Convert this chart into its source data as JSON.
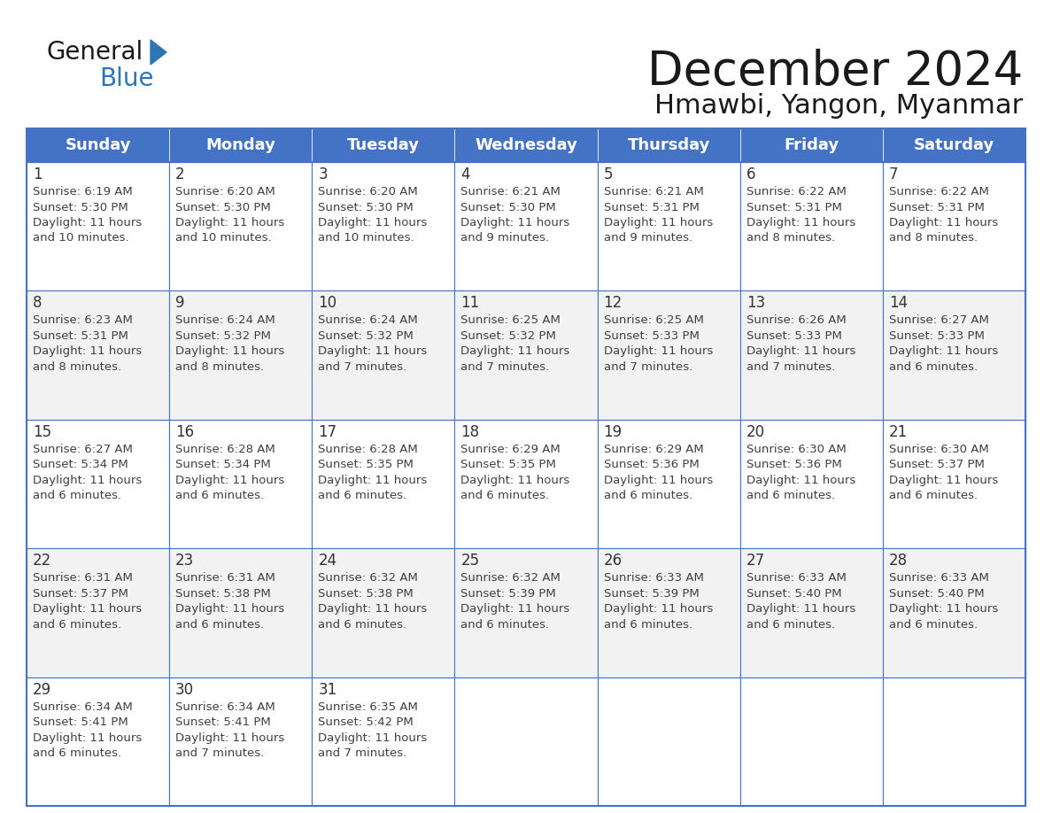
{
  "title": "December 2024",
  "subtitle": "Hmawbi, Yangon, Myanmar",
  "header_bg_color": "#4472C4",
  "header_text_color": "#FFFFFF",
  "cell_bg_color": "#FFFFFF",
  "cell_alt_bg_color": "#F2F2F2",
  "grid_line_color": "#4472C4",
  "day_number_color": "#333333",
  "cell_text_color": "#404040",
  "logo_general_color": "#1a1a1a",
  "logo_blue_color": "#2E75B6",
  "days_of_week": [
    "Sunday",
    "Monday",
    "Tuesday",
    "Wednesday",
    "Thursday",
    "Friday",
    "Saturday"
  ],
  "weeks": [
    [
      {
        "day": 1,
        "sunrise": "6:19 AM",
        "sunset": "5:30 PM",
        "daylight_hours": 11,
        "daylight_minutes": 10
      },
      {
        "day": 2,
        "sunrise": "6:20 AM",
        "sunset": "5:30 PM",
        "daylight_hours": 11,
        "daylight_minutes": 10
      },
      {
        "day": 3,
        "sunrise": "6:20 AM",
        "sunset": "5:30 PM",
        "daylight_hours": 11,
        "daylight_minutes": 10
      },
      {
        "day": 4,
        "sunrise": "6:21 AM",
        "sunset": "5:30 PM",
        "daylight_hours": 11,
        "daylight_minutes": 9
      },
      {
        "day": 5,
        "sunrise": "6:21 AM",
        "sunset": "5:31 PM",
        "daylight_hours": 11,
        "daylight_minutes": 9
      },
      {
        "day": 6,
        "sunrise": "6:22 AM",
        "sunset": "5:31 PM",
        "daylight_hours": 11,
        "daylight_minutes": 8
      },
      {
        "day": 7,
        "sunrise": "6:22 AM",
        "sunset": "5:31 PM",
        "daylight_hours": 11,
        "daylight_minutes": 8
      }
    ],
    [
      {
        "day": 8,
        "sunrise": "6:23 AM",
        "sunset": "5:31 PM",
        "daylight_hours": 11,
        "daylight_minutes": 8
      },
      {
        "day": 9,
        "sunrise": "6:24 AM",
        "sunset": "5:32 PM",
        "daylight_hours": 11,
        "daylight_minutes": 8
      },
      {
        "day": 10,
        "sunrise": "6:24 AM",
        "sunset": "5:32 PM",
        "daylight_hours": 11,
        "daylight_minutes": 7
      },
      {
        "day": 11,
        "sunrise": "6:25 AM",
        "sunset": "5:32 PM",
        "daylight_hours": 11,
        "daylight_minutes": 7
      },
      {
        "day": 12,
        "sunrise": "6:25 AM",
        "sunset": "5:33 PM",
        "daylight_hours": 11,
        "daylight_minutes": 7
      },
      {
        "day": 13,
        "sunrise": "6:26 AM",
        "sunset": "5:33 PM",
        "daylight_hours": 11,
        "daylight_minutes": 7
      },
      {
        "day": 14,
        "sunrise": "6:27 AM",
        "sunset": "5:33 PM",
        "daylight_hours": 11,
        "daylight_minutes": 6
      }
    ],
    [
      {
        "day": 15,
        "sunrise": "6:27 AM",
        "sunset": "5:34 PM",
        "daylight_hours": 11,
        "daylight_minutes": 6
      },
      {
        "day": 16,
        "sunrise": "6:28 AM",
        "sunset": "5:34 PM",
        "daylight_hours": 11,
        "daylight_minutes": 6
      },
      {
        "day": 17,
        "sunrise": "6:28 AM",
        "sunset": "5:35 PM",
        "daylight_hours": 11,
        "daylight_minutes": 6
      },
      {
        "day": 18,
        "sunrise": "6:29 AM",
        "sunset": "5:35 PM",
        "daylight_hours": 11,
        "daylight_minutes": 6
      },
      {
        "day": 19,
        "sunrise": "6:29 AM",
        "sunset": "5:36 PM",
        "daylight_hours": 11,
        "daylight_minutes": 6
      },
      {
        "day": 20,
        "sunrise": "6:30 AM",
        "sunset": "5:36 PM",
        "daylight_hours": 11,
        "daylight_minutes": 6
      },
      {
        "day": 21,
        "sunrise": "6:30 AM",
        "sunset": "5:37 PM",
        "daylight_hours": 11,
        "daylight_minutes": 6
      }
    ],
    [
      {
        "day": 22,
        "sunrise": "6:31 AM",
        "sunset": "5:37 PM",
        "daylight_hours": 11,
        "daylight_minutes": 6
      },
      {
        "day": 23,
        "sunrise": "6:31 AM",
        "sunset": "5:38 PM",
        "daylight_hours": 11,
        "daylight_minutes": 6
      },
      {
        "day": 24,
        "sunrise": "6:32 AM",
        "sunset": "5:38 PM",
        "daylight_hours": 11,
        "daylight_minutes": 6
      },
      {
        "day": 25,
        "sunrise": "6:32 AM",
        "sunset": "5:39 PM",
        "daylight_hours": 11,
        "daylight_minutes": 6
      },
      {
        "day": 26,
        "sunrise": "6:33 AM",
        "sunset": "5:39 PM",
        "daylight_hours": 11,
        "daylight_minutes": 6
      },
      {
        "day": 27,
        "sunrise": "6:33 AM",
        "sunset": "5:40 PM",
        "daylight_hours": 11,
        "daylight_minutes": 6
      },
      {
        "day": 28,
        "sunrise": "6:33 AM",
        "sunset": "5:40 PM",
        "daylight_hours": 11,
        "daylight_minutes": 6
      }
    ],
    [
      {
        "day": 29,
        "sunrise": "6:34 AM",
        "sunset": "5:41 PM",
        "daylight_hours": 11,
        "daylight_minutes": 6
      },
      {
        "day": 30,
        "sunrise": "6:34 AM",
        "sunset": "5:41 PM",
        "daylight_hours": 11,
        "daylight_minutes": 7
      },
      {
        "day": 31,
        "sunrise": "6:35 AM",
        "sunset": "5:42 PM",
        "daylight_hours": 11,
        "daylight_minutes": 7
      },
      null,
      null,
      null,
      null
    ]
  ]
}
